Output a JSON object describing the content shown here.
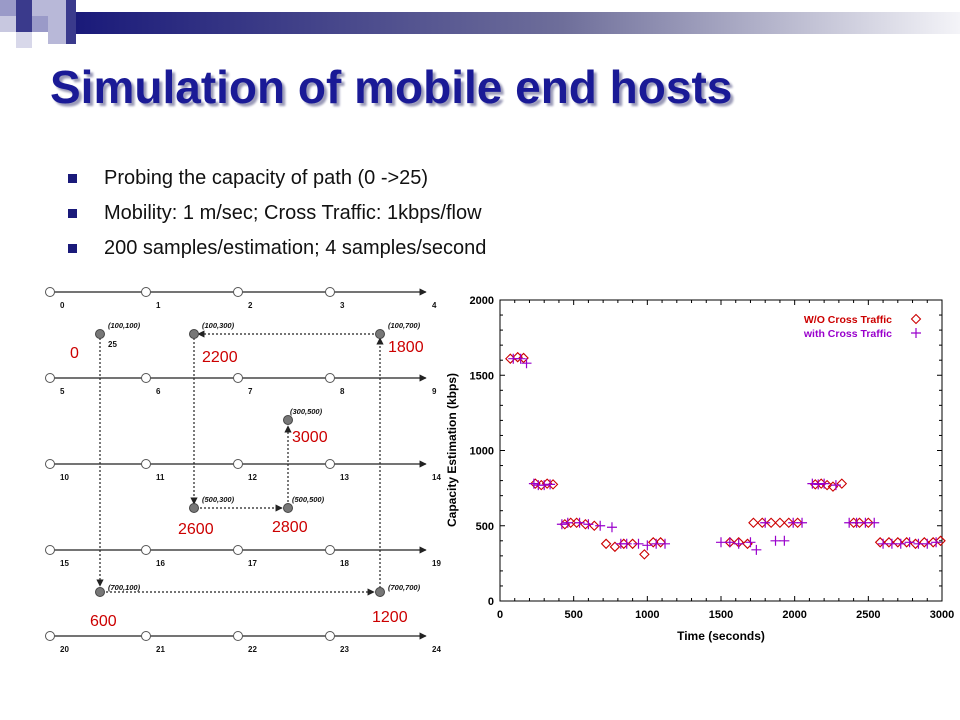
{
  "slide": {
    "title": "Simulation of mobile end hosts",
    "bullets": [
      "Probing the capacity of path (0 ->25)",
      "Mobility: 1 m/sec;    Cross Traffic: 1kbps/flow",
      "200 samples/estimation;    4 samples/second"
    ]
  },
  "colors": {
    "title": "#1a1a96",
    "accent_red": "#cc0000",
    "accent_purple": "#9900cc",
    "deco_blue": "#1a1a7a"
  },
  "topology": {
    "rows": [
      [
        "0",
        "1",
        "2",
        "3",
        "4"
      ],
      [
        "5",
        "6",
        "7",
        "8",
        "9"
      ],
      [
        "10",
        "11",
        "12",
        "13",
        "14"
      ],
      [
        "15",
        "16",
        "17",
        "18",
        "19"
      ],
      [
        "20",
        "21",
        "22",
        "23",
        "24"
      ]
    ],
    "mobile_node_label": "25",
    "waypoints": [
      "(100,100)",
      "(100,300)",
      "(100,700)",
      "(300,500)",
      "(500,300)",
      "(500,500)",
      "(700,100)",
      "(700,700)"
    ],
    "times": [
      "0",
      "2200",
      "1800",
      "3000",
      "2600",
      "2800",
      "600",
      "1200"
    ]
  },
  "chart_data": {
    "type": "scatter",
    "xlabel": "Time (seconds)",
    "ylabel": "Capacity Estimation (kbps)",
    "xlim": [
      0,
      3000
    ],
    "ylim": [
      0,
      2000
    ],
    "xticks": [
      "0",
      "500",
      "1000",
      "1500",
      "2000",
      "2500",
      "3000"
    ],
    "yticks": [
      "0",
      "500",
      "1000",
      "1500",
      "2000"
    ],
    "legend_position": "top-right",
    "series": [
      {
        "name": "W/O Cross Traffic",
        "marker": "diamond",
        "color": "#cc0000",
        "points": [
          [
            70,
            1610
          ],
          [
            120,
            1620
          ],
          [
            160,
            1615
          ],
          [
            240,
            780
          ],
          [
            280,
            770
          ],
          [
            320,
            780
          ],
          [
            360,
            775
          ],
          [
            440,
            510
          ],
          [
            480,
            520
          ],
          [
            520,
            520
          ],
          [
            580,
            510
          ],
          [
            640,
            500
          ],
          [
            720,
            380
          ],
          [
            780,
            360
          ],
          [
            840,
            380
          ],
          [
            900,
            380
          ],
          [
            980,
            310
          ],
          [
            1040,
            390
          ],
          [
            1090,
            390
          ],
          [
            1560,
            390
          ],
          [
            1620,
            390
          ],
          [
            1680,
            380
          ],
          [
            1720,
            520
          ],
          [
            1780,
            520
          ],
          [
            1840,
            520
          ],
          [
            1900,
            520
          ],
          [
            1960,
            520
          ],
          [
            2020,
            520
          ],
          [
            2140,
            775
          ],
          [
            2180,
            780
          ],
          [
            2220,
            770
          ],
          [
            2260,
            760
          ],
          [
            2320,
            780
          ],
          [
            2400,
            520
          ],
          [
            2440,
            520
          ],
          [
            2500,
            520
          ],
          [
            2580,
            390
          ],
          [
            2640,
            390
          ],
          [
            2700,
            390
          ],
          [
            2760,
            390
          ],
          [
            2820,
            380
          ],
          [
            2880,
            390
          ],
          [
            2940,
            390
          ],
          [
            2990,
            400
          ]
        ]
      },
      {
        "name": "with Cross Traffic",
        "marker": "plus",
        "color": "#9900cc",
        "points": [
          [
            90,
            1610
          ],
          [
            140,
            1610
          ],
          [
            180,
            1580
          ],
          [
            230,
            780
          ],
          [
            260,
            770
          ],
          [
            300,
            770
          ],
          [
            340,
            775
          ],
          [
            420,
            510
          ],
          [
            460,
            520
          ],
          [
            540,
            520
          ],
          [
            600,
            510
          ],
          [
            680,
            500
          ],
          [
            760,
            490
          ],
          [
            820,
            380
          ],
          [
            860,
            380
          ],
          [
            940,
            380
          ],
          [
            1000,
            370
          ],
          [
            1060,
            380
          ],
          [
            1120,
            380
          ],
          [
            1500,
            390
          ],
          [
            1560,
            390
          ],
          [
            1620,
            380
          ],
          [
            1700,
            390
          ],
          [
            1740,
            340
          ],
          [
            1800,
            520
          ],
          [
            1870,
            400
          ],
          [
            1930,
            400
          ],
          [
            1990,
            520
          ],
          [
            2050,
            520
          ],
          [
            2120,
            780
          ],
          [
            2160,
            775
          ],
          [
            2200,
            780
          ],
          [
            2280,
            770
          ],
          [
            2370,
            520
          ],
          [
            2420,
            520
          ],
          [
            2480,
            520
          ],
          [
            2540,
            520
          ],
          [
            2600,
            380
          ],
          [
            2660,
            380
          ],
          [
            2720,
            380
          ],
          [
            2780,
            390
          ],
          [
            2840,
            380
          ],
          [
            2900,
            380
          ],
          [
            2960,
            390
          ]
        ]
      }
    ]
  }
}
